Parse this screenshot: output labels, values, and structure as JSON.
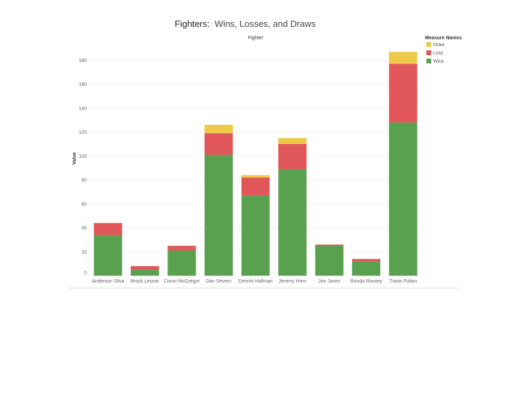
{
  "chart_data": {
    "type": "bar",
    "stacked": true,
    "title_bold": "Fighters:",
    "title_rest": "Wins, Losses, and Draws",
    "subtitle": "Fighter",
    "ylabel": "Value",
    "xlabel": "",
    "ylim": [
      0,
      190
    ],
    "yticks": [
      0,
      20,
      40,
      60,
      80,
      100,
      120,
      140,
      160,
      180
    ],
    "grid": true,
    "legend_title": "Measure Names",
    "legend_position": "top-right",
    "categories": [
      "Anderson Silva",
      "Brock Lesnar",
      "Conor McGregor",
      "Dan Severn",
      "Dennis Hallman",
      "Jeremy Horn",
      "Jon Jones",
      "Ronda Rousey",
      "Travis Fulton"
    ],
    "series": [
      {
        "name": "Wins",
        "color": "#59a14f",
        "values": [
          34,
          5,
          21,
          101,
          67,
          89,
          25,
          12,
          128
        ]
      },
      {
        "name": "Loss",
        "color": "#e15759",
        "values": [
          10,
          3,
          4,
          18,
          15,
          21,
          1,
          2,
          49
        ]
      },
      {
        "name": "Draw",
        "color": "#edc948",
        "values": [
          0,
          0,
          0,
          7,
          2,
          5,
          0,
          0,
          10
        ]
      }
    ],
    "legend_order": [
      "Draw",
      "Loss",
      "Wins"
    ]
  }
}
